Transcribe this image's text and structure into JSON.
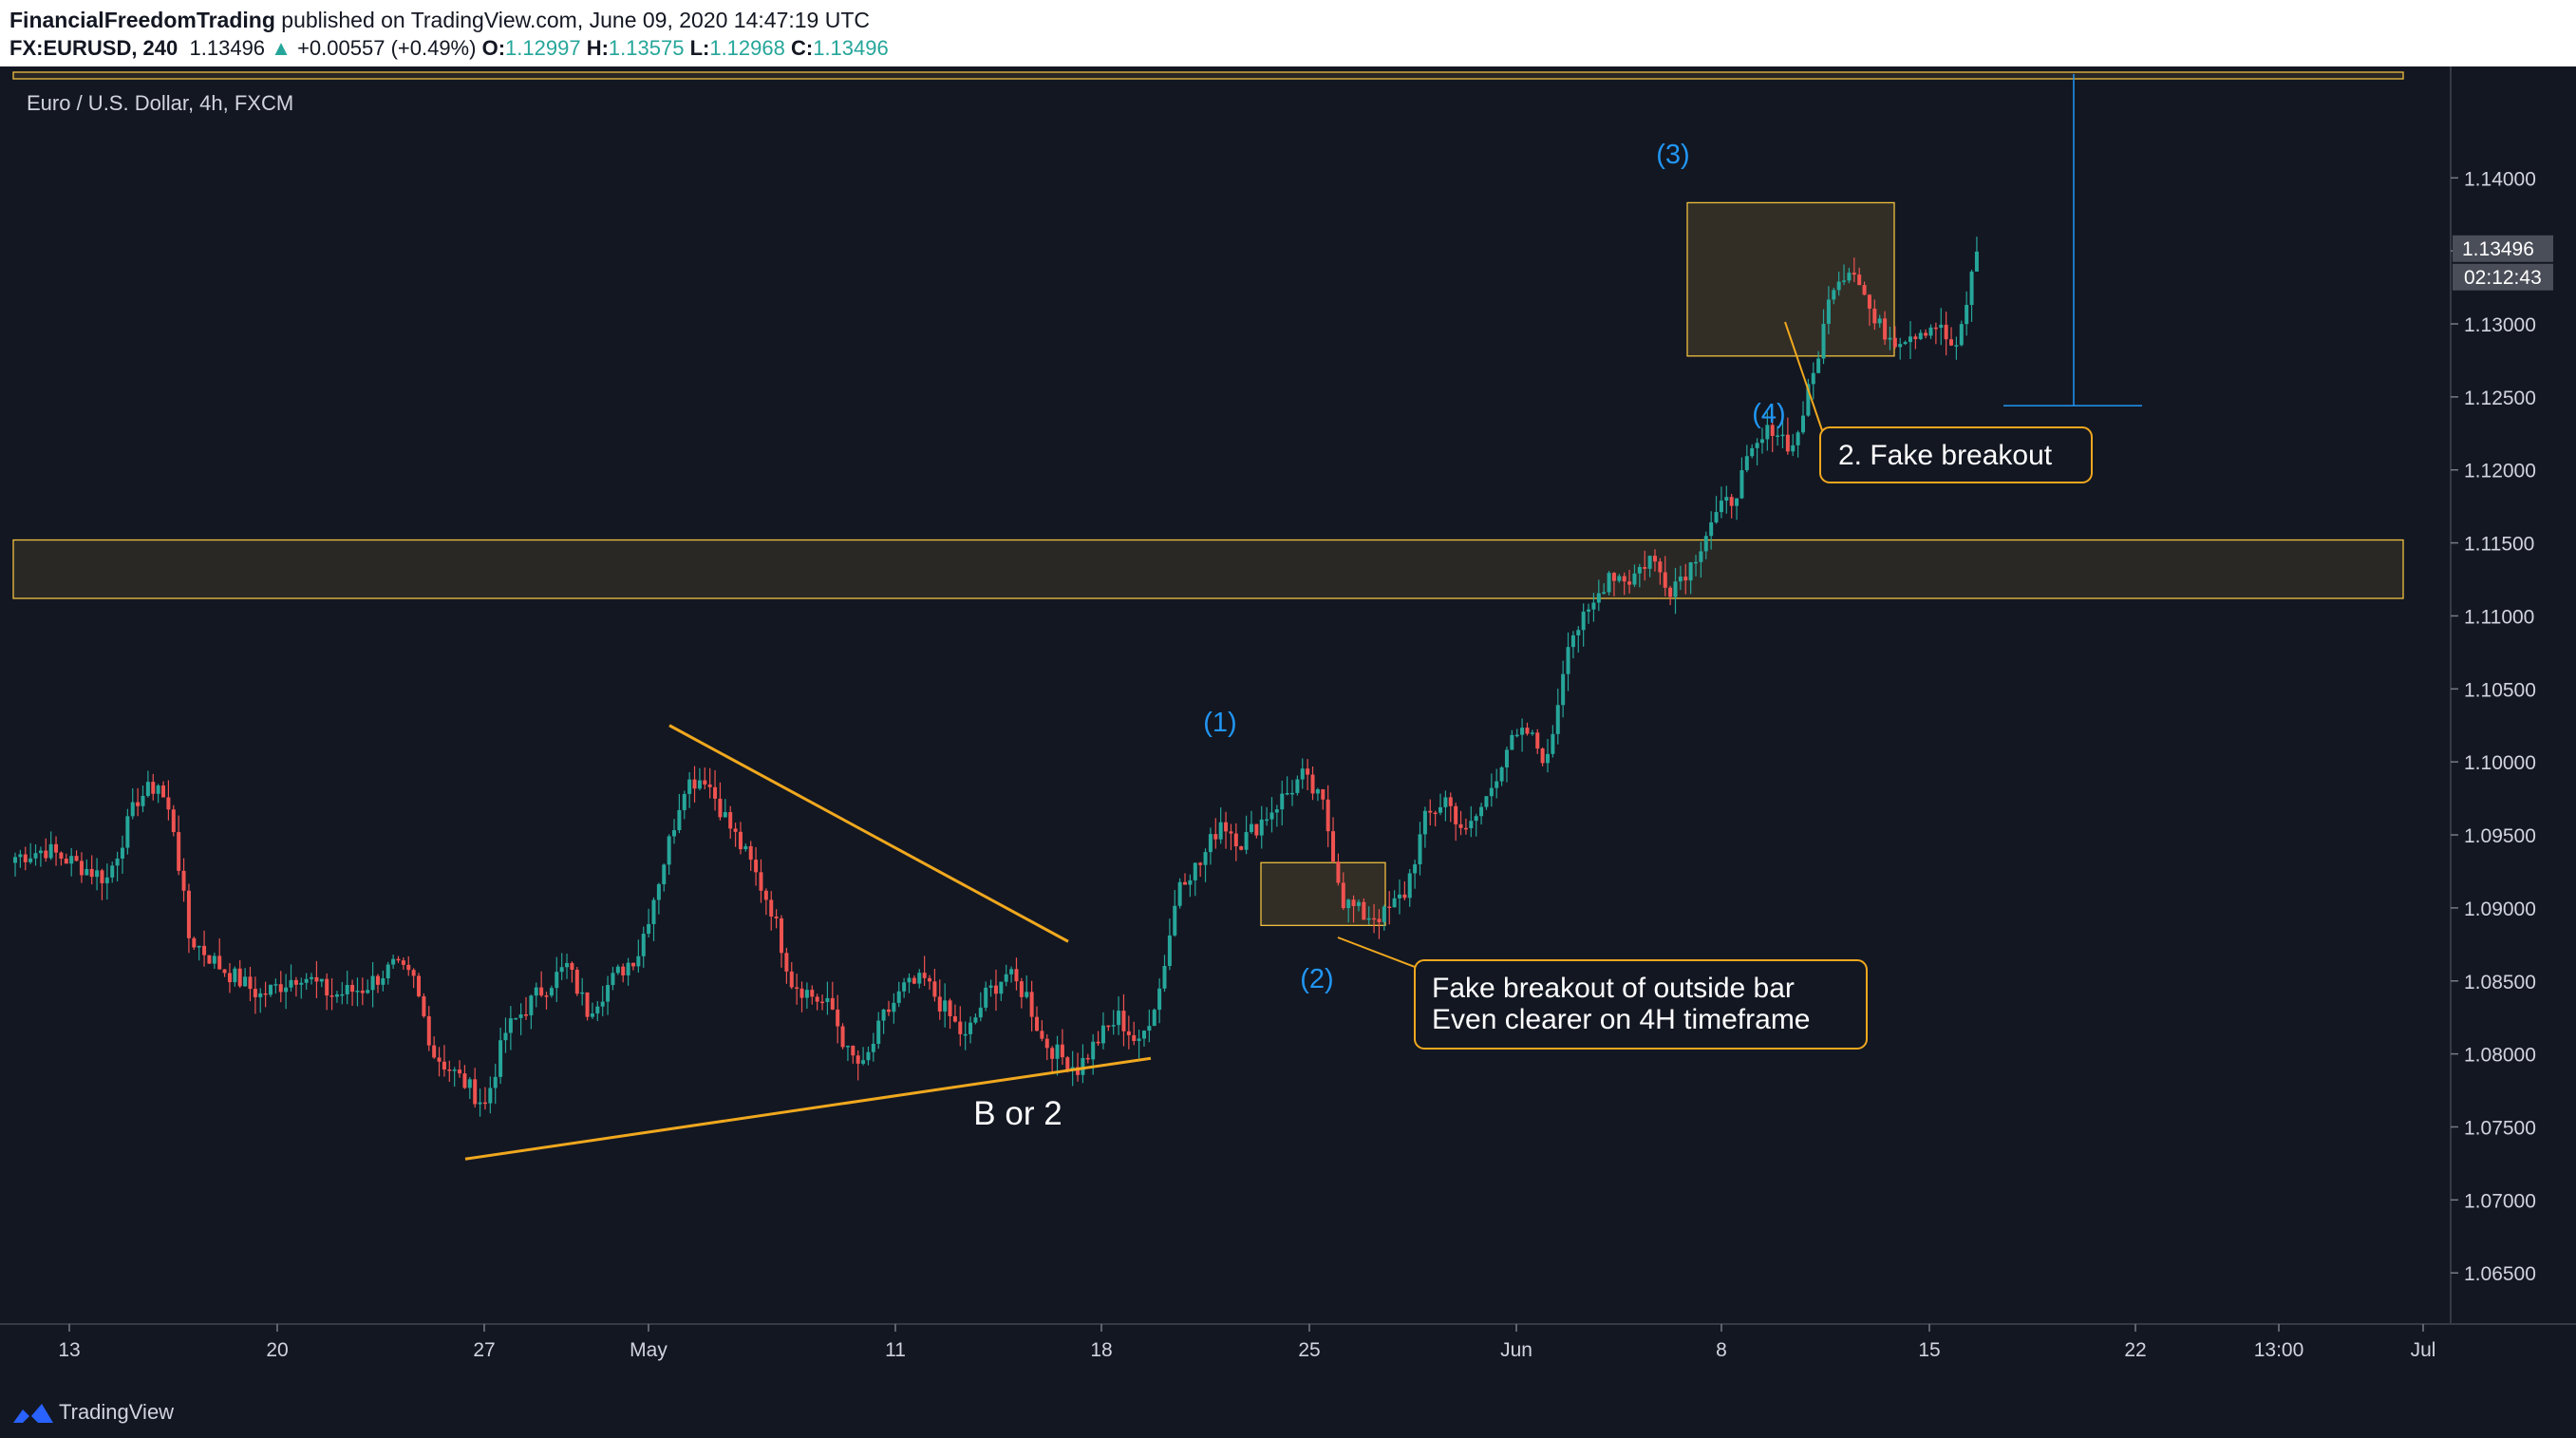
{
  "header": {
    "author": "FinancialFreedomTrading",
    "published": "published on TradingView.com, June 09, 2020 14:47:19 UTC",
    "symbol": "FX:EURUSD, 240",
    "last": "1.13496",
    "arrow": "▲",
    "change": "+0.00557 (+0.49%)",
    "o_label": "O:",
    "o_value": "1.12997",
    "h_label": "H:",
    "h_value": "1.13575",
    "l_label": "L:",
    "l_value": "1.12968",
    "c_label": "C:",
    "c_value": "1.13496"
  },
  "footer": {
    "brand": "TradingView"
  },
  "colors": {
    "background": "#131722",
    "up": "#26a69a",
    "down": "#ef5350",
    "trendline": "#f0a81e",
    "zone": "#f0c040",
    "wave_label": "#2196f3"
  },
  "chart_data": {
    "type": "candlestick",
    "title": "Euro / U.S. Dollar, 4h, FXCM",
    "ylim": [
      1.0615,
      1.1475
    ],
    "y_ticks": [
      "1.14000",
      "1.13500",
      "1.13000",
      "1.12500",
      "1.12000",
      "1.11500",
      "1.11000",
      "1.10500",
      "1.10000",
      "1.09500",
      "1.09000",
      "1.08500",
      "1.08000",
      "1.07500",
      "1.07000",
      "1.06500"
    ],
    "x_ticks": [
      "13",
      "20",
      "27",
      "May",
      "11",
      "18",
      "25",
      "Jun",
      "8",
      "15",
      "22",
      "13:00",
      "Jul"
    ],
    "last_price": "1.13496",
    "countdown": "02:12:43",
    "series": [
      {
        "name": "EURUSD 4h",
        "anchor_prices": [
          [
            0,
            1.0935
          ],
          [
            6,
            1.094
          ],
          [
            12,
            1.093
          ],
          [
            18,
            1.092
          ],
          [
            24,
            1.0975
          ],
          [
            28,
            1.0985
          ],
          [
            31,
            1.0955
          ],
          [
            34,
            1.088
          ],
          [
            40,
            1.086
          ],
          [
            48,
            1.084
          ],
          [
            56,
            1.0855
          ],
          [
            62,
            1.084
          ],
          [
            68,
            1.0845
          ],
          [
            74,
            1.086
          ],
          [
            78,
            1.085
          ],
          [
            82,
            1.08
          ],
          [
            88,
            1.078
          ],
          [
            92,
            1.0765
          ],
          [
            96,
            1.0815
          ],
          [
            102,
            1.084
          ],
          [
            108,
            1.086
          ],
          [
            112,
            1.083
          ],
          [
            118,
            1.0855
          ],
          [
            122,
            1.087
          ],
          [
            124,
            1.0895
          ],
          [
            128,
            1.0945
          ],
          [
            131,
            1.0985
          ],
          [
            135,
            1.099
          ],
          [
            140,
            1.0955
          ],
          [
            144,
            1.093
          ],
          [
            148,
            1.09
          ],
          [
            152,
            1.085
          ],
          [
            156,
            1.084
          ],
          [
            160,
            1.083
          ],
          [
            163,
            1.08
          ],
          [
            166,
            1.079
          ],
          [
            170,
            1.0825
          ],
          [
            174,
            1.0845
          ],
          [
            178,
            1.085
          ],
          [
            182,
            1.083
          ],
          [
            186,
            1.081
          ],
          [
            190,
            1.084
          ],
          [
            194,
            1.0855
          ],
          [
            198,
            1.084
          ],
          [
            201,
            1.081
          ],
          [
            204,
            1.08
          ],
          [
            208,
            1.079
          ],
          [
            212,
            1.081
          ],
          [
            216,
            1.0825
          ],
          [
            220,
            1.0805
          ],
          [
            224,
            1.0845
          ],
          [
            228,
            1.092
          ],
          [
            232,
            1.093
          ],
          [
            236,
            1.096
          ],
          [
            240,
            1.0945
          ],
          [
            244,
            1.096
          ],
          [
            248,
            1.0975
          ],
          [
            252,
            1.099
          ],
          [
            256,
            1.097
          ],
          [
            260,
            1.0905
          ],
          [
            264,
            1.0895
          ],
          [
            268,
            1.0895
          ],
          [
            272,
            1.091
          ],
          [
            276,
            1.096
          ],
          [
            280,
            1.0975
          ],
          [
            284,
            1.095
          ],
          [
            288,
            1.0975
          ],
          [
            292,
            1.101
          ],
          [
            296,
            1.102
          ],
          [
            300,
            1.1
          ],
          [
            304,
            1.1085
          ],
          [
            308,
            1.11
          ],
          [
            312,
            1.113
          ],
          [
            316,
            1.1125
          ],
          [
            320,
            1.114
          ],
          [
            324,
            1.112
          ],
          [
            328,
            1.1135
          ],
          [
            332,
            1.1165
          ],
          [
            336,
            1.118
          ],
          [
            340,
            1.121
          ],
          [
            344,
            1.123
          ],
          [
            348,
            1.1215
          ],
          [
            352,
            1.1265
          ],
          [
            356,
            1.133
          ],
          [
            360,
            1.134
          ],
          [
            364,
            1.13
          ],
          [
            368,
            1.129
          ],
          [
            372,
            1.1295
          ],
          [
            376,
            1.13
          ],
          [
            380,
            1.128
          ],
          [
            384,
            1.135
          ]
        ]
      }
    ],
    "annotations": {
      "wave_labels": [
        "(1)",
        "(2)",
        "(3)",
        "(4)"
      ],
      "pattern_label": "B or 2",
      "callout_1": [
        "Fake breakout of outside bar",
        "Even clearer on 4H timeframe"
      ],
      "callout_2": "2. Fake breakout",
      "resistance_zone": [
        1.1112,
        1.1152
      ],
      "top_zone": [
        1.1468,
        1.1475
      ],
      "box_1": [
        1.0888,
        1.0931
      ],
      "box_2": [
        1.1278,
        1.1383
      ],
      "triangle_upper": [
        [
          1.1025
        ],
        [
          1.0877
        ]
      ],
      "triangle_lower": [
        [
          1.0728
        ],
        [
          1.0797
        ]
      ],
      "measure_range": [
        1.1475,
        1.1244
      ]
    }
  }
}
